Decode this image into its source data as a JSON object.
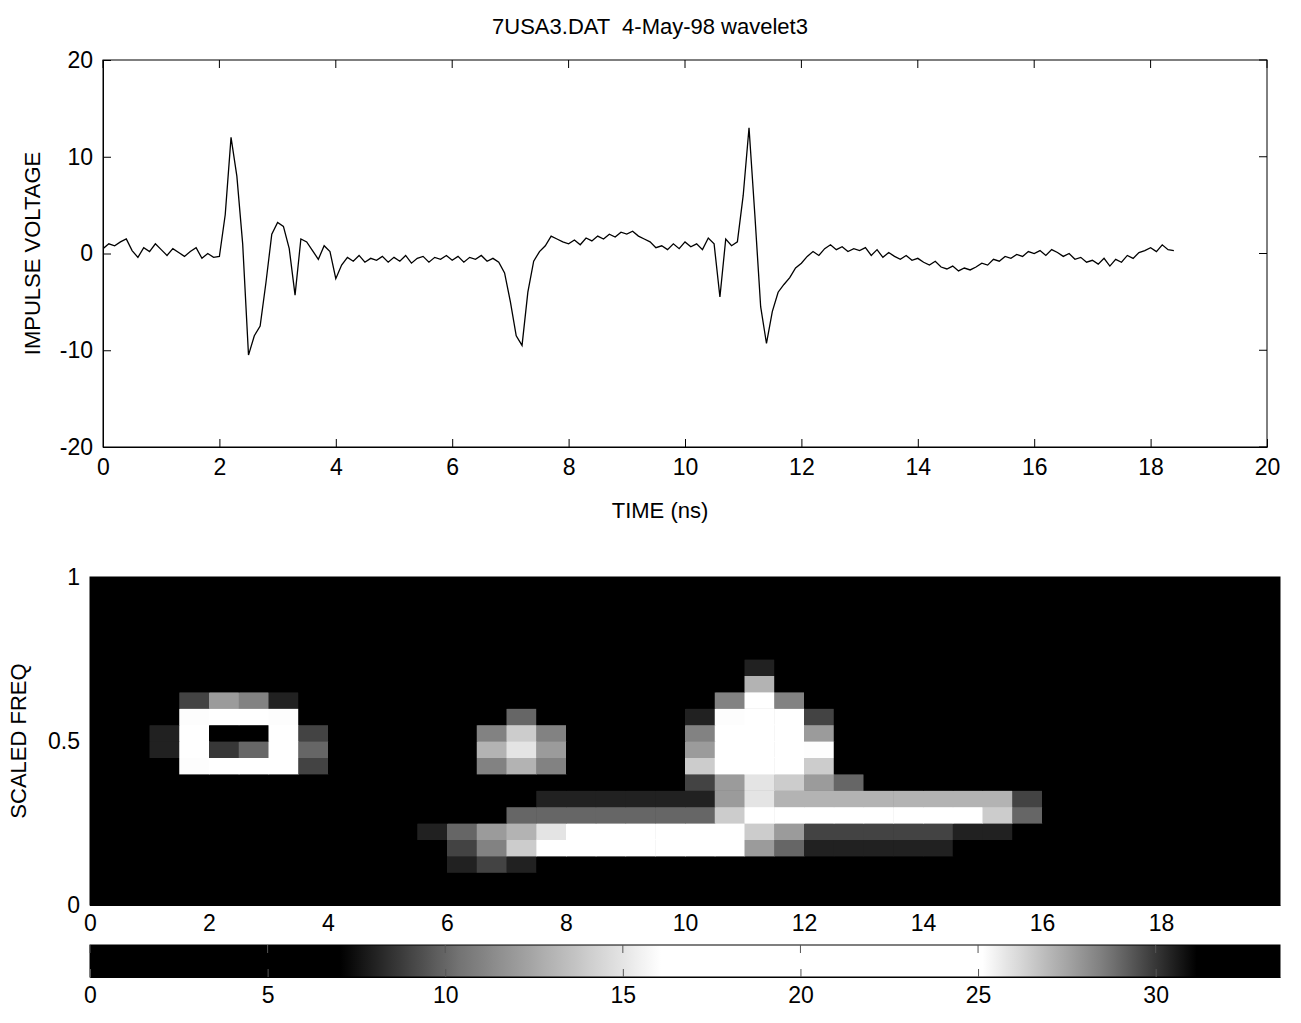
{
  "chart_data": [
    {
      "type": "line",
      "title": "7USA3.DAT  4-May-98 wavelet3",
      "x_label": "TIME (ns)",
      "y_label": "IMPULSE VOLTAGE",
      "x": [
        0,
        0.1,
        0.2,
        0.3,
        0.4,
        0.5,
        0.6,
        0.7,
        0.8,
        0.9,
        1,
        1.1,
        1.2,
        1.3,
        1.4,
        1.5,
        1.6,
        1.7,
        1.8,
        1.9,
        2,
        2.1,
        2.2,
        2.3,
        2.4,
        2.5,
        2.6,
        2.7,
        2.8,
        2.9,
        3,
        3.1,
        3.2,
        3.3,
        3.4,
        3.5,
        3.6,
        3.7,
        3.8,
        3.9,
        4,
        4.1,
        4.2,
        4.3,
        4.4,
        4.5,
        4.6,
        4.7,
        4.8,
        4.9,
        5,
        5.1,
        5.2,
        5.3,
        5.4,
        5.5,
        5.6,
        5.7,
        5.8,
        5.9,
        6,
        6.1,
        6.2,
        6.3,
        6.4,
        6.5,
        6.6,
        6.7,
        6.8,
        6.9,
        7,
        7.1,
        7.2,
        7.3,
        7.4,
        7.5,
        7.6,
        7.7,
        7.8,
        7.9,
        8,
        8.1,
        8.2,
        8.3,
        8.4,
        8.5,
        8.6,
        8.7,
        8.8,
        8.9,
        9,
        9.1,
        9.2,
        9.3,
        9.4,
        9.5,
        9.6,
        9.7,
        9.8,
        9.9,
        10,
        10.1,
        10.2,
        10.3,
        10.4,
        10.5,
        10.6,
        10.7,
        10.8,
        10.9,
        11,
        11.1,
        11.2,
        11.3,
        11.4,
        11.5,
        11.6,
        11.7,
        11.8,
        11.9,
        12,
        12.1,
        12.2,
        12.3,
        12.4,
        12.5,
        12.6,
        12.7,
        12.8,
        12.9,
        13,
        13.1,
        13.2,
        13.3,
        13.4,
        13.5,
        13.6,
        13.7,
        13.8,
        13.9,
        14,
        14.1,
        14.2,
        14.3,
        14.4,
        14.5,
        14.6,
        14.7,
        14.8,
        14.9,
        15,
        15.1,
        15.2,
        15.3,
        15.4,
        15.5,
        15.6,
        15.7,
        15.8,
        15.9,
        16,
        16.1,
        16.2,
        16.3,
        16.4,
        16.5,
        16.6,
        16.7,
        16.8,
        16.9,
        17,
        17.1,
        17.2,
        17.3,
        17.4,
        17.5,
        17.6,
        17.7,
        17.8,
        17.9,
        18,
        18.1,
        18.2,
        18.3,
        18.4
      ],
      "values": [
        0.5,
        1.0,
        0.8,
        1.2,
        1.5,
        0.3,
        -0.4,
        0.6,
        0.2,
        1.0,
        0.4,
        -0.2,
        0.5,
        0.1,
        -0.3,
        0.2,
        0.6,
        -0.5,
        0.0,
        -0.4,
        -0.3,
        4.0,
        12.0,
        8.0,
        1.0,
        -10.5,
        -8.5,
        -7.5,
        -3.0,
        2.0,
        3.2,
        2.8,
        0.5,
        -4.3,
        1.5,
        1.2,
        0.3,
        -0.6,
        0.8,
        0.2,
        -2.6,
        -1.2,
        -0.4,
        -0.8,
        -0.2,
        -0.9,
        -0.5,
        -0.7,
        -0.3,
        -0.9,
        -0.4,
        -0.8,
        -0.2,
        -1.0,
        -0.5,
        -0.3,
        -0.9,
        -0.4,
        -0.6,
        -0.2,
        -0.7,
        -0.3,
        -0.9,
        -0.4,
        -0.6,
        -0.2,
        -0.8,
        -0.5,
        -0.9,
        -2.0,
        -5.0,
        -8.5,
        -9.5,
        -4.0,
        -0.8,
        0.2,
        0.8,
        1.8,
        1.5,
        1.2,
        1.0,
        1.4,
        0.9,
        1.6,
        1.3,
        1.8,
        1.5,
        2.0,
        1.7,
        2.2,
        2.0,
        2.3,
        1.8,
        1.5,
        1.2,
        0.6,
        0.8,
        0.4,
        1.0,
        0.5,
        1.2,
        0.7,
        1.0,
        0.4,
        1.6,
        1.0,
        -4.5,
        1.5,
        0.8,
        1.2,
        6.0,
        13.0,
        4.0,
        -5.5,
        -9.3,
        -6.0,
        -4.0,
        -3.2,
        -2.5,
        -1.5,
        -1.0,
        -0.3,
        0.2,
        -0.2,
        0.5,
        0.9,
        0.4,
        0.7,
        0.2,
        0.5,
        0.3,
        0.6,
        -0.2,
        0.4,
        -0.4,
        0.1,
        -0.3,
        -0.6,
        -0.2,
        -0.7,
        -0.5,
        -0.9,
        -1.2,
        -0.8,
        -1.4,
        -1.6,
        -1.3,
        -1.8,
        -1.5,
        -1.7,
        -1.4,
        -1.0,
        -1.2,
        -0.6,
        -0.8,
        -0.3,
        -0.5,
        -0.1,
        -0.3,
        0.2,
        0.0,
        0.3,
        -0.2,
        0.4,
        0.1,
        -0.3,
        0.0,
        -0.6,
        -0.4,
        -0.9,
        -0.7,
        -1.1,
        -0.5,
        -1.3,
        -0.6,
        -0.9,
        -0.2,
        -0.5,
        0.1,
        0.3,
        0.6,
        0.2,
        0.9,
        0.4,
        0.3
      ],
      "color": "#000000",
      "xlim": [
        0,
        20
      ],
      "xticks": [
        0,
        2,
        4,
        6,
        8,
        10,
        12,
        14,
        16,
        18,
        20
      ],
      "ylim": [
        -20,
        20
      ],
      "yticks": [
        -20,
        -10,
        0,
        10,
        20
      ],
      "grid": false
    },
    {
      "type": "heatmap",
      "y_label": "SCALED FREQ",
      "x": [
        0.25,
        0.75,
        1.25,
        1.75,
        2.25,
        2.75,
        3.25,
        3.75,
        4.25,
        4.75,
        5.25,
        5.75,
        6.25,
        6.75,
        7.25,
        7.75,
        8.25,
        8.75,
        9.25,
        9.75,
        10.25,
        10.75,
        11.25,
        11.75,
        12.25,
        12.75,
        13.25,
        13.75,
        14.25,
        14.75,
        15.25,
        15.75,
        16.25,
        16.75,
        17.25,
        17.75,
        18.25,
        18.75,
        19.25,
        19.75
      ],
      "y": [
        0.025,
        0.075,
        0.125,
        0.175,
        0.225,
        0.275,
        0.325,
        0.375,
        0.425,
        0.475,
        0.525,
        0.575,
        0.625,
        0.675,
        0.725,
        0.775,
        0.825,
        0.875,
        0.925,
        0.975
      ],
      "z": [
        [
          1,
          1,
          1,
          1,
          1,
          1,
          1,
          1,
          1,
          1,
          1,
          1,
          1,
          1,
          1,
          1,
          1,
          1,
          1,
          1,
          1,
          1,
          1,
          1,
          1,
          1,
          1,
          1,
          1,
          1,
          7,
          1,
          1,
          1,
          1,
          1,
          1,
          1,
          1,
          1
        ],
        [
          2,
          2,
          2,
          2,
          2,
          2,
          2,
          2,
          2,
          2,
          2,
          2,
          4,
          5,
          5,
          4,
          3,
          3,
          3,
          3,
          3,
          3,
          3,
          3,
          3,
          3,
          3,
          3,
          3,
          3,
          6,
          2,
          2,
          2,
          2,
          2,
          2,
          2,
          2,
          2
        ],
        [
          2,
          2,
          2,
          2,
          2,
          2,
          2,
          2,
          2,
          2,
          2,
          4,
          8,
          9,
          8,
          7,
          7,
          7,
          7,
          7,
          7,
          7,
          6,
          6,
          6,
          6,
          6,
          6,
          5,
          5,
          6,
          2,
          2,
          2,
          2,
          2,
          2,
          2,
          2,
          2
        ],
        [
          2,
          2,
          2,
          2,
          2,
          2,
          2,
          2,
          2,
          2,
          2,
          5,
          9,
          11,
          14,
          18,
          20,
          21,
          22,
          21,
          20,
          19,
          12,
          10,
          8,
          8,
          8,
          8,
          8,
          6,
          5,
          3,
          2,
          2,
          2,
          2,
          2,
          2,
          2,
          2
        ],
        [
          2,
          2,
          2,
          2,
          2,
          2,
          2,
          2,
          2,
          2,
          2,
          8,
          10,
          12,
          13,
          15,
          17,
          19,
          19,
          19,
          19,
          19,
          14,
          12,
          9,
          9,
          9,
          9,
          9,
          8,
          8,
          4,
          2,
          2,
          2,
          2,
          2,
          2,
          2,
          2
        ],
        [
          3,
          3,
          3,
          3,
          3,
          3,
          3,
          3,
          3,
          3,
          3,
          4,
          5,
          7,
          10,
          10,
          10,
          10,
          10,
          10,
          10,
          14,
          18,
          20,
          20,
          20,
          20,
          20,
          20,
          18,
          14,
          10,
          3,
          3,
          3,
          3,
          3,
          3,
          3,
          3
        ],
        [
          3,
          3,
          3,
          3,
          3,
          3,
          3,
          3,
          3,
          3,
          3,
          3,
          3,
          3,
          3,
          8,
          8,
          8,
          8,
          8,
          8,
          12,
          15,
          13,
          13,
          13,
          13,
          13,
          13,
          13,
          13,
          9,
          3,
          3,
          3,
          3,
          3,
          3,
          3,
          3
        ],
        [
          3,
          3,
          3,
          3,
          3,
          3,
          3,
          3,
          3,
          3,
          3,
          3,
          3,
          3,
          3,
          3,
          3,
          3,
          3,
          3,
          9,
          12,
          15,
          14,
          12,
          10,
          3,
          3,
          3,
          3,
          3,
          3,
          3,
          3,
          3,
          3,
          3,
          3,
          3,
          3
        ],
        [
          2,
          3,
          6,
          16,
          20,
          20,
          17,
          9,
          3,
          2,
          2,
          2,
          5,
          11,
          13,
          11,
          3,
          2,
          2,
          4,
          14,
          19,
          20,
          19,
          14,
          6,
          3,
          2,
          2,
          2,
          2,
          2,
          2,
          2,
          2,
          2,
          2,
          2,
          2,
          2
        ],
        [
          2,
          4,
          8,
          19,
          30,
          29,
          20,
          10,
          3,
          2,
          2,
          2,
          6,
          13,
          15,
          12,
          3,
          2,
          3,
          6,
          12,
          20,
          22,
          21,
          16,
          7,
          3,
          2,
          2,
          2,
          2,
          2,
          2,
          2,
          2,
          2,
          2,
          2,
          2,
          2
        ],
        [
          2,
          4,
          8,
          19,
          33,
          32,
          20,
          9,
          3,
          2,
          2,
          2,
          5,
          11,
          14,
          11,
          3,
          2,
          3,
          6,
          11,
          19,
          22,
          20,
          12,
          6,
          3,
          2,
          2,
          2,
          2,
          2,
          2,
          2,
          2,
          2,
          2,
          2,
          2,
          2
        ],
        [
          2,
          3,
          6,
          16,
          25,
          22,
          16,
          7,
          2,
          2,
          2,
          2,
          3,
          7,
          10,
          7,
          2,
          2,
          2,
          4,
          8,
          16,
          20,
          17,
          9,
          4,
          2,
          2,
          2,
          2,
          2,
          2,
          2,
          2,
          2,
          2,
          2,
          2,
          2,
          2
        ],
        [
          2,
          2,
          3,
          9,
          12,
          11,
          8,
          4,
          2,
          2,
          2,
          2,
          2,
          2,
          5,
          2,
          2,
          2,
          2,
          2,
          5,
          11,
          17,
          11,
          5,
          2,
          2,
          2,
          2,
          2,
          2,
          2,
          2,
          2,
          2,
          2,
          2,
          2,
          2,
          2
        ],
        [
          1,
          1,
          1,
          1,
          1,
          1,
          1,
          1,
          1,
          1,
          1,
          1,
          1,
          1,
          1,
          1,
          1,
          1,
          1,
          1,
          1,
          7,
          13,
          7,
          1,
          1,
          1,
          1,
          1,
          1,
          1,
          1,
          1,
          1,
          1,
          1,
          1,
          1,
          1,
          1
        ],
        [
          1,
          1,
          1,
          1,
          1,
          1,
          1,
          1,
          1,
          1,
          1,
          1,
          1,
          1,
          1,
          1,
          1,
          1,
          1,
          1,
          1,
          1,
          8,
          1,
          1,
          1,
          1,
          1,
          1,
          1,
          1,
          1,
          1,
          1,
          1,
          1,
          1,
          1,
          1,
          1
        ],
        [
          1,
          1,
          1,
          1,
          1,
          1,
          1,
          1,
          1,
          1,
          1,
          1,
          1,
          1,
          1,
          1,
          1,
          1,
          1,
          1,
          1,
          1,
          1,
          1,
          1,
          1,
          1,
          1,
          1,
          1,
          1,
          1,
          1,
          1,
          1,
          1,
          1,
          1,
          1,
          1
        ],
        [
          1,
          1,
          1,
          1,
          1,
          1,
          1,
          1,
          1,
          1,
          1,
          1,
          1,
          1,
          1,
          1,
          1,
          1,
          1,
          1,
          1,
          1,
          1,
          1,
          1,
          1,
          1,
          1,
          1,
          1,
          1,
          1,
          1,
          1,
          1,
          1,
          1,
          1,
          1,
          1
        ],
        [
          1,
          1,
          1,
          1,
          1,
          1,
          1,
          1,
          1,
          1,
          1,
          1,
          1,
          1,
          1,
          1,
          1,
          1,
          1,
          1,
          1,
          1,
          1,
          1,
          1,
          1,
          1,
          1,
          1,
          1,
          1,
          1,
          1,
          1,
          1,
          1,
          1,
          1,
          1,
          1
        ],
        [
          1,
          1,
          1,
          1,
          1,
          1,
          1,
          1,
          1,
          1,
          1,
          1,
          1,
          1,
          1,
          1,
          1,
          1,
          1,
          1,
          1,
          1,
          1,
          1,
          1,
          1,
          1,
          1,
          1,
          1,
          1,
          1,
          1,
          1,
          1,
          1,
          1,
          1,
          1,
          1
        ],
        [
          1,
          1,
          1,
          1,
          1,
          1,
          1,
          1,
          1,
          1,
          1,
          1,
          1,
          1,
          1,
          1,
          1,
          1,
          1,
          1,
          1,
          1,
          1,
          1,
          1,
          1,
          1,
          1,
          1,
          1,
          1,
          1,
          1,
          1,
          1,
          1,
          1,
          1,
          1,
          1
        ]
      ],
      "xlim": [
        0,
        20
      ],
      "xticks": [
        0,
        2,
        4,
        6,
        8,
        10,
        12,
        14,
        16,
        18
      ],
      "ylim": [
        0,
        1
      ],
      "yticks": [
        0,
        0.5,
        1
      ],
      "zlim": [
        0,
        33.5
      ],
      "zticks": [
        0,
        5,
        10,
        15,
        20,
        25,
        30
      ]
    }
  ]
}
